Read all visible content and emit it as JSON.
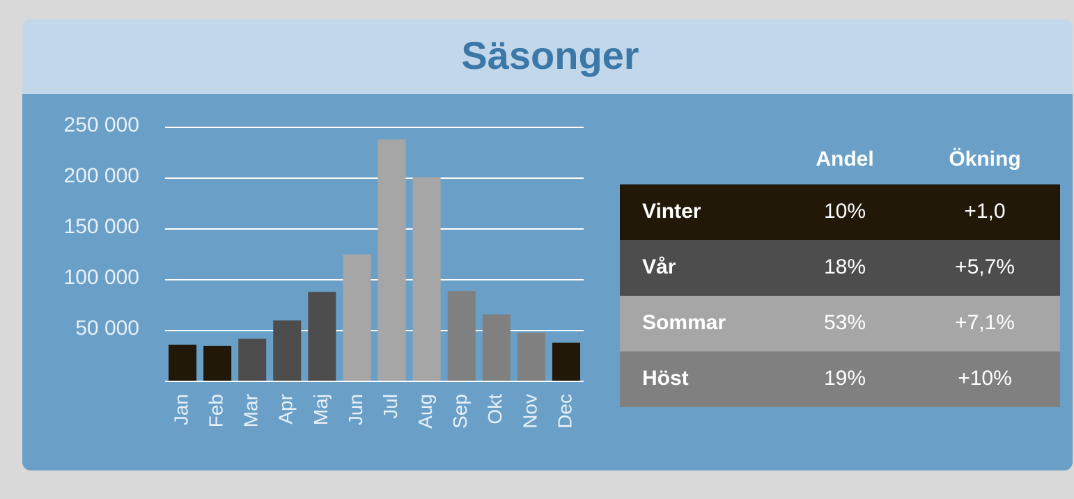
{
  "title": "Säsonger",
  "chart_data": {
    "type": "bar",
    "categories": [
      "Jan",
      "Feb",
      "Mar",
      "Apr",
      "Maj",
      "Jun",
      "Jul",
      "Aug",
      "Sep",
      "Okt",
      "Nov",
      "Dec"
    ],
    "values": [
      36000,
      35000,
      42000,
      60000,
      88000,
      125000,
      238000,
      201000,
      89000,
      66000,
      48000,
      38000
    ],
    "colors": [
      "#211808",
      "#211808",
      "#4d4d4d",
      "#4d4d4d",
      "#4d4d4d",
      "#a6a6a6",
      "#a6a6a6",
      "#a6a6a6",
      "#808080",
      "#808080",
      "#808080",
      "#211808"
    ],
    "ylim": [
      0,
      250000
    ],
    "yticks": [
      {
        "value": 50000,
        "label": "50 000"
      },
      {
        "value": 100000,
        "label": "100 000"
      },
      {
        "value": 150000,
        "label": "150 000"
      },
      {
        "value": 200000,
        "label": "200 000"
      },
      {
        "value": 250000,
        "label": "250 000"
      }
    ],
    "grid": true
  },
  "table": {
    "headers": [
      "Andel",
      "Ökning"
    ],
    "rows": [
      [
        "Vinter",
        "10%",
        "+1,0"
      ],
      [
        "Vår",
        "18%",
        "+5,7%"
      ],
      [
        "Sommar",
        "53%",
        "+7,1%"
      ],
      [
        "Höst",
        "19%",
        "+10%"
      ]
    ],
    "row_colors": [
      "#211808",
      "#4d4d4d",
      "#a6a6a6",
      "#808080"
    ]
  }
}
